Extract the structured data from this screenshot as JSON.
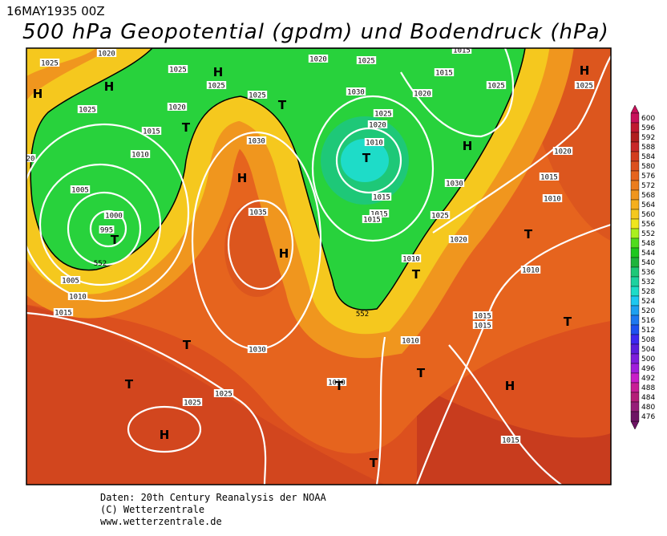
{
  "header": {
    "date": "16MAY1935 00Z",
    "title": "500 hPa Geopotential (gpdm) und Bodendruck (hPa)"
  },
  "map": {
    "isobar_labels": [
      1020,
      1025,
      1025,
      1025,
      1025,
      1020,
      1015,
      1010,
      1005,
      1000,
      995,
      1005,
      1010,
      1015,
      1030,
      1035,
      1030,
      1025,
      1025,
      1020,
      1025,
      1030,
      1025,
      1020,
      1010,
      1015,
      1015,
      1015,
      1025,
      1020,
      1010,
      1030,
      1020,
      1015,
      1015,
      1025,
      1025,
      1020,
      1015,
      1010,
      1010,
      1015,
      1015,
      1010,
      1010,
      1015,
      1025,
      20
    ],
    "contour_labels": [
      552,
      552
    ],
    "pressure_centers": [
      "H",
      "H",
      "H",
      "T",
      "T",
      "H",
      "T",
      "H",
      "H",
      "T",
      "T",
      "T",
      "T",
      "T",
      "T",
      "T",
      "T",
      "H",
      "H",
      "T",
      "H"
    ]
  },
  "legend": {
    "ticks": [
      600,
      596,
      592,
      588,
      584,
      580,
      576,
      572,
      568,
      564,
      560,
      556,
      552,
      548,
      544,
      540,
      536,
      532,
      528,
      524,
      520,
      516,
      512,
      508,
      504,
      500,
      496,
      492,
      488,
      484,
      480,
      476
    ],
    "colors": [
      "#c8105a",
      "#c01830",
      "#b01e1e",
      "#c82828",
      "#d23c1e",
      "#dc501e",
      "#e6641e",
      "#eb7d1e",
      "#f0961e",
      "#f5af1e",
      "#f5c81e",
      "#f0e61e",
      "#aaf01e",
      "#50dc1e",
      "#1ec81e",
      "#1eb43c",
      "#1ec878",
      "#1ed2a0",
      "#1edcc8",
      "#1ec8f0",
      "#1ea0f0",
      "#1e78f0",
      "#1e50f0",
      "#3c28f0",
      "#5a1edc",
      "#7d1edc",
      "#a01edc",
      "#c81ec8",
      "#c81e96",
      "#b41e78",
      "#961e78",
      "#6e1464"
    ]
  },
  "footer": {
    "lines": [
      "Daten: 20th Century Reanalysis der NOAA",
      "(C) Wetterzentrale",
      "www.wetterzentrale.de"
    ]
  }
}
